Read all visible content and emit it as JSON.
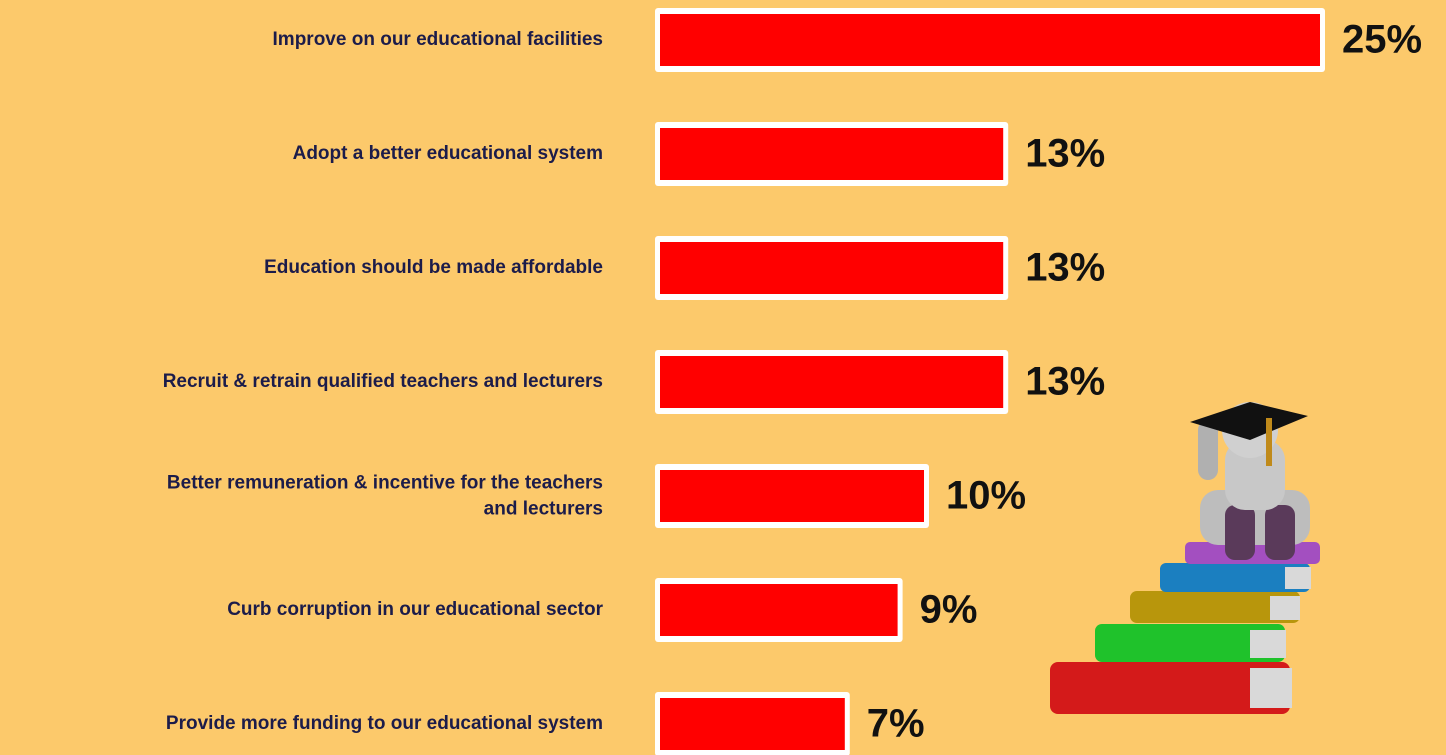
{
  "chart_data": {
    "type": "bar",
    "orientation": "horizontal",
    "categories": [
      "Improve on our educational facilities",
      "Adopt a better educational system",
      "Education should be made affordable",
      "Recruit & retrain qualified teachers and lecturers",
      "Better remuneration & incentive for the teachers and lecturers",
      "Curb corruption in our educational sector",
      "Provide more funding to our educational system"
    ],
    "values": [
      25,
      13,
      13,
      13,
      10,
      9,
      7
    ],
    "value_labels": [
      "25%",
      "13%",
      "13%",
      "13%",
      "10%",
      "9%",
      "7%"
    ],
    "color": "#ff0000"
  }
}
